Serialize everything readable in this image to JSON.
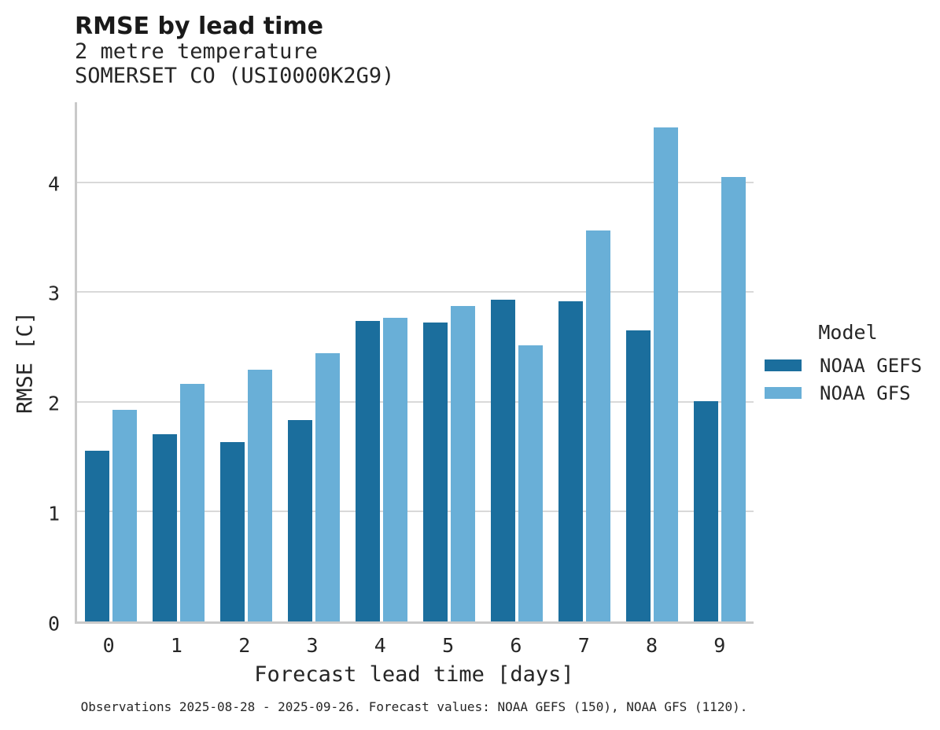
{
  "chart_data": {
    "type": "bar",
    "title": "RMSE by lead time",
    "subtitle_1": "2 metre temperature",
    "subtitle_2": "SOMERSET CO (USI0000K2G9)",
    "xlabel": "Forecast lead time [days]",
    "ylabel": "RMSE [C]",
    "categories": [
      "0",
      "1",
      "2",
      "3",
      "4",
      "5",
      "6",
      "7",
      "8",
      "9"
    ],
    "series": [
      {
        "name": "NOAA GEFS",
        "color": "#1b6e9d",
        "values": [
          1.56,
          1.71,
          1.64,
          1.84,
          2.74,
          2.73,
          2.94,
          2.92,
          2.66,
          2.01
        ]
      },
      {
        "name": "NOAA GFS",
        "color": "#69afd7",
        "values": [
          1.93,
          2.17,
          2.3,
          2.45,
          2.77,
          2.88,
          2.52,
          3.57,
          4.51,
          4.06
        ]
      }
    ],
    "ylim": [
      0,
      4.74
    ],
    "yticks": [
      0,
      1,
      2,
      3,
      4
    ],
    "grid": true,
    "legend_title": "Model",
    "legend_position": "right",
    "caption": "Observations 2025-08-28 - 2025-09-26. Forecast values: NOAA GEFS (150), NOAA GFS (1120)."
  }
}
